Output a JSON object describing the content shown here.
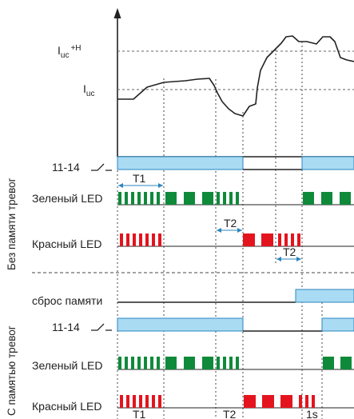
{
  "colors": {
    "line": "#222222",
    "relay_fill": "#a9dbf3",
    "relay_edge": "#2c86bf",
    "green": "#0f8a3b",
    "red": "#e4141e",
    "arrow": "#2c86bf"
  },
  "signal": {
    "label_iuc_h_main": "I",
    "label_iuc_h_sub": "uc",
    "label_iuc_h_sup": "+H",
    "label_iuc_main": "I",
    "label_iuc_sub": "uc"
  },
  "section_no_memory": {
    "title": "Без памяти тревог",
    "relay_label": "11-14",
    "green_label": "Зеленый LED",
    "red_label": "Красный LED",
    "t1_label": "T1",
    "t2_label_a": "T2",
    "t2_label_b": "T2"
  },
  "section_memory": {
    "title": "С памятью тревог",
    "reset_label": "сброс памяти",
    "relay_label": "11-14",
    "green_label": "Зеленый LED",
    "red_label": "Красный LED",
    "bottom_t1": "T1",
    "bottom_t2": "T2",
    "bottom_1s": "1s"
  }
}
